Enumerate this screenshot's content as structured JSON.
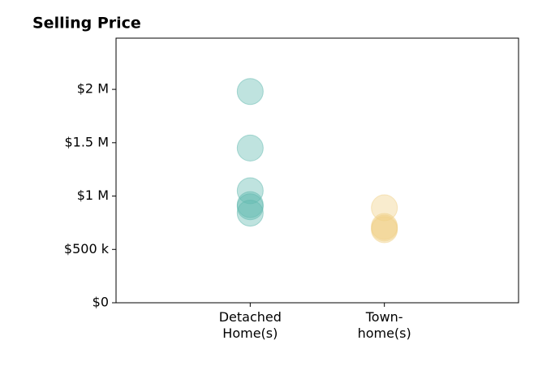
{
  "chart_data": {
    "type": "scatter",
    "title": "Selling Price",
    "categories": [
      "Detached\nHome(s)",
      "Town-\nhome(s)"
    ],
    "series": [
      {
        "color": "#5fb8ae",
        "values": [
          1980000,
          1450000,
          1050000,
          920000,
          900000,
          840000
        ]
      },
      {
        "color": "#f0cf85",
        "values": [
          890000,
          715000,
          700000,
          685000
        ]
      }
    ],
    "ylim": [
      0,
      2480000
    ],
    "yticks": [
      {
        "value": 0,
        "label": "$0"
      },
      {
        "value": 500000,
        "label": "$500 k"
      },
      {
        "value": 1000000,
        "label": "$1 M"
      },
      {
        "value": 1500000,
        "label": "$1.5 M"
      },
      {
        "value": 2000000,
        "label": "$2 M"
      }
    ],
    "grid": false
  }
}
